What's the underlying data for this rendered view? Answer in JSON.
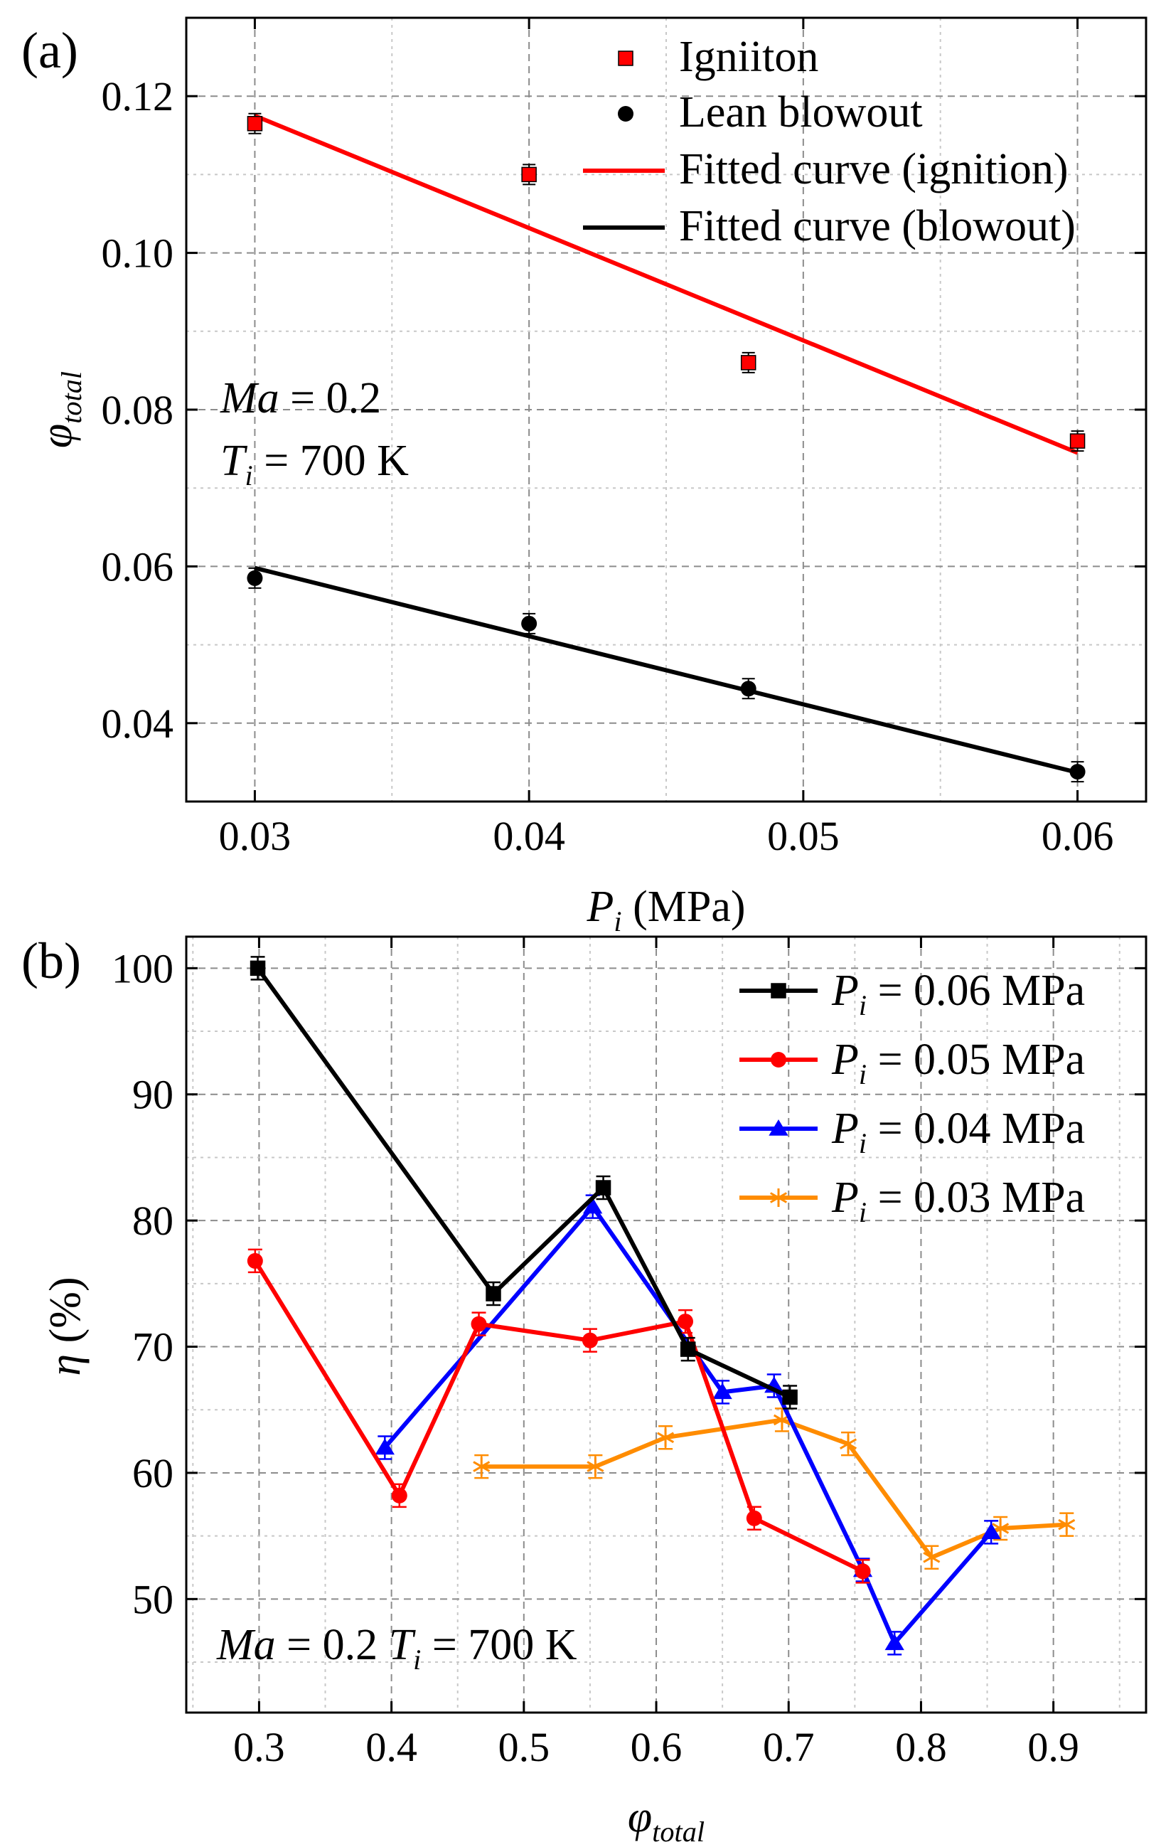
{
  "chart_data": [
    {
      "type": "scatter",
      "panel_label": "(a)",
      "xlabel": {
        "main": "P",
        "sub": "i",
        "unit": " (MPa)"
      },
      "ylabel": {
        "main": "φ",
        "sub": "total"
      },
      "xlim": [
        0.0275,
        0.0625
      ],
      "ylim": [
        0.03,
        0.13
      ],
      "xticks": [
        0.03,
        0.04,
        0.05,
        0.06
      ],
      "xtick_labels": [
        "0.03",
        "0.04",
        "0.05",
        "0.06"
      ],
      "yticks": [
        0.04,
        0.06,
        0.08,
        0.1,
        0.12
      ],
      "ytick_labels": [
        "0.04",
        "0.06",
        "0.08",
        "0.10",
        "0.12"
      ],
      "grid": true,
      "legend_position": "top-right",
      "series": [
        {
          "name": "Igniiton",
          "kind": "points",
          "marker": "square",
          "color": "#ff0000",
          "x": [
            0.03,
            0.04,
            0.048,
            0.06
          ],
          "y": [
            0.1165,
            0.11,
            0.086,
            0.076
          ]
        },
        {
          "name": "Lean blowout",
          "kind": "points",
          "marker": "circle",
          "color": "#000000",
          "x": [
            0.03,
            0.04,
            0.048,
            0.06
          ],
          "y": [
            0.0585,
            0.0527,
            0.0444,
            0.0338
          ]
        },
        {
          "name": "Fitted curve (ignition)",
          "kind": "line",
          "color": "#ff0000",
          "x": [
            0.03,
            0.06
          ],
          "y": [
            0.1175,
            0.0745
          ]
        },
        {
          "name": "Fitted curve (blowout)",
          "kind": "line",
          "color": "#000000",
          "x": [
            0.03,
            0.06
          ],
          "y": [
            0.0598,
            0.0337
          ]
        }
      ],
      "annotations": [
        {
          "main": "Ma",
          "rest": " = 0.2"
        },
        {
          "main": "T",
          "sub": "i",
          "rest": " = 700 K"
        }
      ]
    },
    {
      "type": "line",
      "panel_label": "(b)",
      "xlabel": {
        "main": "φ",
        "sub": "total"
      },
      "ylabel": {
        "main": "η",
        "unit": " (%)"
      },
      "xlim": [
        0.245,
        0.97
      ],
      "ylim": [
        41,
        102.5
      ],
      "xticks": [
        0.3,
        0.4,
        0.5,
        0.6,
        0.7,
        0.8,
        0.9
      ],
      "xtick_labels": [
        "0.3",
        "0.4",
        "0.5",
        "0.6",
        "0.7",
        "0.8",
        "0.9"
      ],
      "yticks": [
        50,
        60,
        70,
        80,
        90,
        100
      ],
      "ytick_labels": [
        "50",
        "60",
        "70",
        "80",
        "90",
        "100"
      ],
      "grid": true,
      "legend_position": "top-right",
      "series": [
        {
          "name": "Pi = 0.06 MPa",
          "legend_main": "P",
          "legend_sub": "i",
          "legend_rest": " = 0.06 MPa",
          "marker": "square",
          "color": "#000000",
          "x": [
            0.299,
            0.477,
            0.56,
            0.624,
            0.701
          ],
          "y": [
            100.0,
            74.2,
            82.6,
            69.8,
            66.0
          ]
        },
        {
          "name": "Pi = 0.05 MPa",
          "legend_main": "P",
          "legend_sub": "i",
          "legend_rest": " = 0.05 MPa",
          "marker": "circle",
          "color": "#ff0000",
          "x": [
            0.297,
            0.406,
            0.466,
            0.55,
            0.622,
            0.674,
            0.756
          ],
          "y": [
            76.8,
            58.2,
            71.8,
            70.5,
            72.0,
            56.4,
            52.2
          ]
        },
        {
          "name": "Pi = 0.04 MPa",
          "legend_main": "P",
          "legend_sub": "i",
          "legend_rest": " = 0.04 MPa",
          "marker": "triangle",
          "color": "#0000ff",
          "x": [
            0.395,
            0.552,
            0.65,
            0.689,
            0.756,
            0.78,
            0.853
          ],
          "y": [
            62.0,
            81.1,
            66.4,
            66.9,
            52.3,
            46.5,
            55.3
          ]
        },
        {
          "name": "Pi = 0.03 MPa",
          "legend_main": "P",
          "legend_sub": "i",
          "legend_rest": " = 0.03 MPa",
          "marker": "star",
          "color": "#ff8c00",
          "x": [
            0.468,
            0.554,
            0.607,
            0.695,
            0.745,
            0.808,
            0.86,
            0.91
          ],
          "y": [
            60.5,
            60.5,
            62.8,
            64.2,
            62.3,
            53.3,
            55.6,
            55.9
          ]
        }
      ],
      "annotations": [
        {
          "main": "Ma",
          "rest": " = 0.2  "
        },
        {
          "main": "T",
          "sub": "i",
          "rest": " = 700 K"
        }
      ]
    }
  ]
}
